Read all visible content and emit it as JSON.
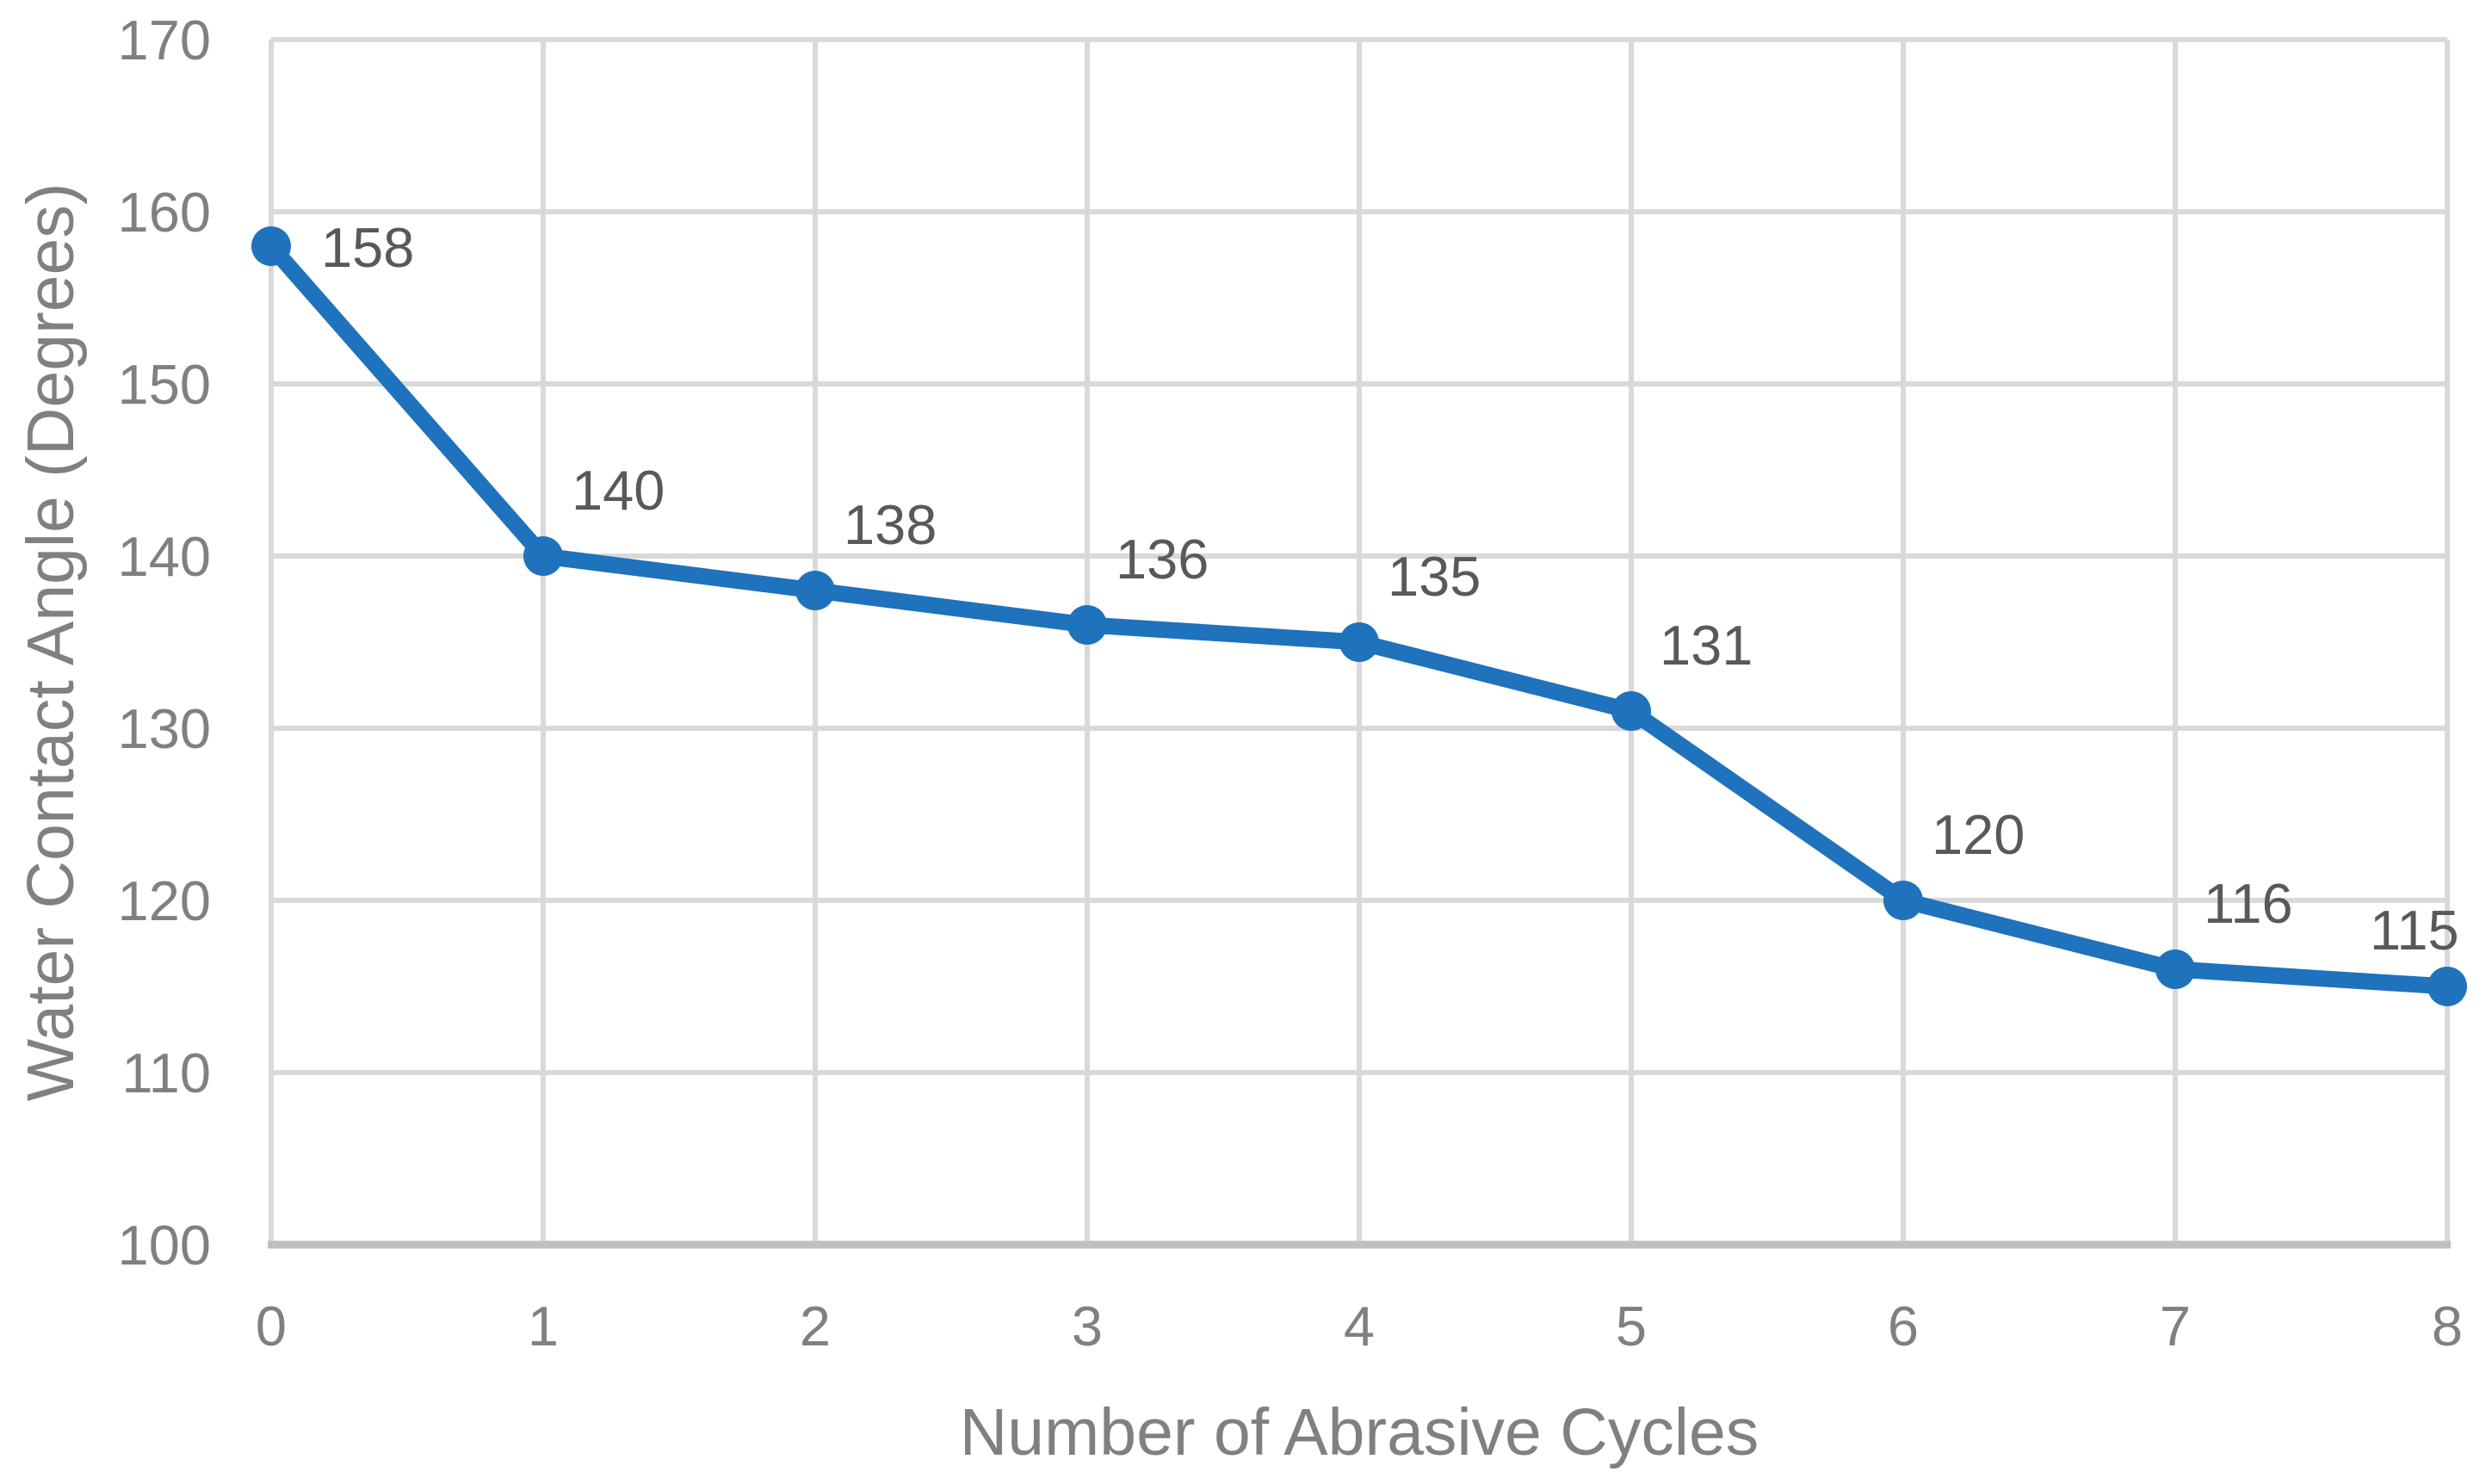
{
  "chart_data": {
    "type": "line",
    "title": "",
    "xlabel": "Number of Abrasive Cycles",
    "ylabel": "Water Contact Angle (Degrees)",
    "x": [
      0,
      1,
      2,
      3,
      4,
      5,
      6,
      7,
      8
    ],
    "series": [
      {
        "name": "Water Contact Angle",
        "values": [
          158,
          140,
          138,
          136,
          135,
          131,
          120,
          116,
          115
        ]
      }
    ],
    "data_labels": [
      "158",
      "140",
      "138",
      "136",
      "135",
      "131",
      "120",
      "116",
      "115"
    ],
    "xticks": [
      "0",
      "1",
      "2",
      "3",
      "4",
      "5",
      "6",
      "7",
      "8"
    ],
    "yticks": [
      "100",
      "110",
      "120",
      "130",
      "140",
      "150",
      "160",
      "170"
    ],
    "ytick_values": [
      100,
      110,
      120,
      130,
      140,
      150,
      160,
      170
    ],
    "xlim": [
      0,
      8
    ],
    "ylim": [
      100,
      170
    ],
    "grid": true,
    "legend": "none",
    "style": {
      "line_color": "#1F72BC",
      "marker_color": "#1F72BC",
      "marker_shape": "circle",
      "gridline_color": "#D9D9D9",
      "axis_line_color": "#BFBFBF",
      "tick_label_color": "#808080",
      "data_label_color": "#595959",
      "axis_title_color": "#808080",
      "background": "#FFFFFF"
    }
  }
}
